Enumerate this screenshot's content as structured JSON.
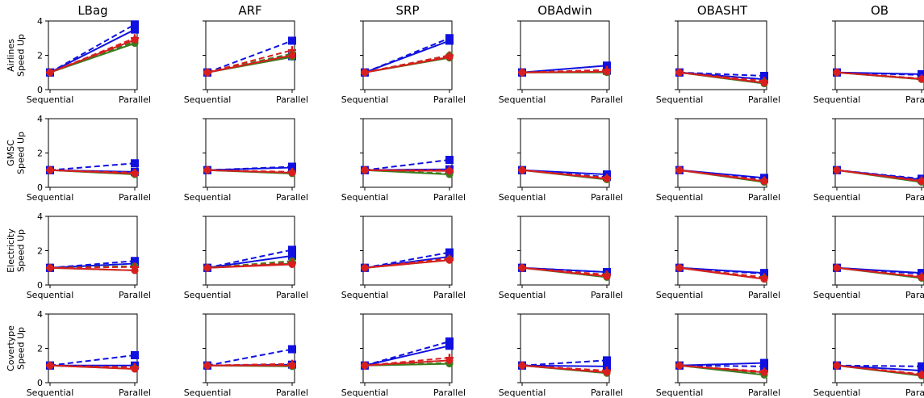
{
  "chart_data": {
    "type": "line",
    "ylabel_suffix": "Speed Up",
    "ylim": [
      0,
      4
    ],
    "yticks": [
      "0",
      "2",
      "4"
    ],
    "categories": [
      "Sequential",
      "Parallel"
    ],
    "columns": [
      "LBag",
      "ARF",
      "SRP",
      "OBAdwin",
      "OBASHT",
      "OB"
    ],
    "rows": [
      "Airlines",
      "GMSC",
      "Electricity",
      "Covertype"
    ],
    "series_style": [
      {
        "color": "#1010e0",
        "dash": true,
        "marker": "square"
      },
      {
        "color": "#1010e0",
        "dash": false,
        "marker": "square"
      },
      {
        "color": "#3a7d1e",
        "dash": true,
        "marker": "circle"
      },
      {
        "color": "#3a7d1e",
        "dash": false,
        "marker": "circle"
      },
      {
        "color": "#d81e1e",
        "dash": true,
        "marker": "plus"
      },
      {
        "color": "#d81e1e",
        "dash": false,
        "marker": "circle"
      }
    ],
    "parallel_values": {
      "Airlines": {
        "LBag": [
          3.8,
          3.5,
          2.8,
          2.7,
          3.0,
          2.9
        ],
        "ARF": [
          2.85,
          1.95,
          2.1,
          1.9,
          2.3,
          2.0
        ],
        "SRP": [
          3.0,
          2.85,
          2.0,
          1.85,
          2.0,
          1.9
        ],
        "OBAdwin": [
          1.1,
          1.4,
          1.05,
          1.0,
          1.15,
          1.05
        ],
        "OBASHT": [
          0.8,
          0.6,
          0.45,
          0.35,
          0.5,
          0.4
        ],
        "OB": [
          0.85,
          0.9,
          0.6,
          0.6,
          0.65,
          0.62
        ]
      },
      "GMSC": {
        "LBag": [
          1.4,
          0.9,
          0.8,
          0.75,
          0.85,
          0.8
        ],
        "ARF": [
          1.2,
          1.15,
          0.85,
          0.8,
          0.9,
          0.85
        ],
        "SRP": [
          1.6,
          1.05,
          0.8,
          0.75,
          1.0,
          0.95
        ],
        "OBAdwin": [
          0.6,
          0.75,
          0.5,
          0.45,
          0.55,
          0.5
        ],
        "OBASHT": [
          0.5,
          0.55,
          0.35,
          0.3,
          0.4,
          0.35
        ],
        "OB": [
          0.5,
          0.45,
          0.35,
          0.3,
          0.4,
          0.35
        ]
      },
      "Electricity": {
        "LBag": [
          1.4,
          1.25,
          1.1,
          0.85,
          1.05,
          0.85
        ],
        "ARF": [
          2.05,
          1.7,
          1.4,
          1.25,
          1.3,
          1.2
        ],
        "SRP": [
          1.9,
          1.65,
          1.5,
          1.45,
          1.55,
          1.45
        ],
        "OBAdwin": [
          0.75,
          0.75,
          0.55,
          0.45,
          0.6,
          0.5
        ],
        "OBASHT": [
          0.65,
          0.7,
          0.4,
          0.35,
          0.45,
          0.35
        ],
        "OB": [
          0.65,
          0.7,
          0.45,
          0.4,
          0.5,
          0.45
        ]
      },
      "Covertype": {
        "LBag": [
          1.6,
          1.0,
          0.85,
          0.8,
          0.9,
          0.8
        ],
        "ARF": [
          1.95,
          1.05,
          1.0,
          0.95,
          1.1,
          1.0
        ],
        "SRP": [
          2.4,
          2.15,
          1.15,
          1.1,
          1.45,
          1.3
        ],
        "OBAdwin": [
          1.3,
          0.95,
          0.6,
          0.55,
          0.7,
          0.6
        ],
        "OBASHT": [
          0.95,
          1.15,
          0.5,
          0.45,
          0.65,
          0.6
        ],
        "OB": [
          0.95,
          0.7,
          0.45,
          0.4,
          0.5,
          0.45
        ]
      }
    }
  }
}
